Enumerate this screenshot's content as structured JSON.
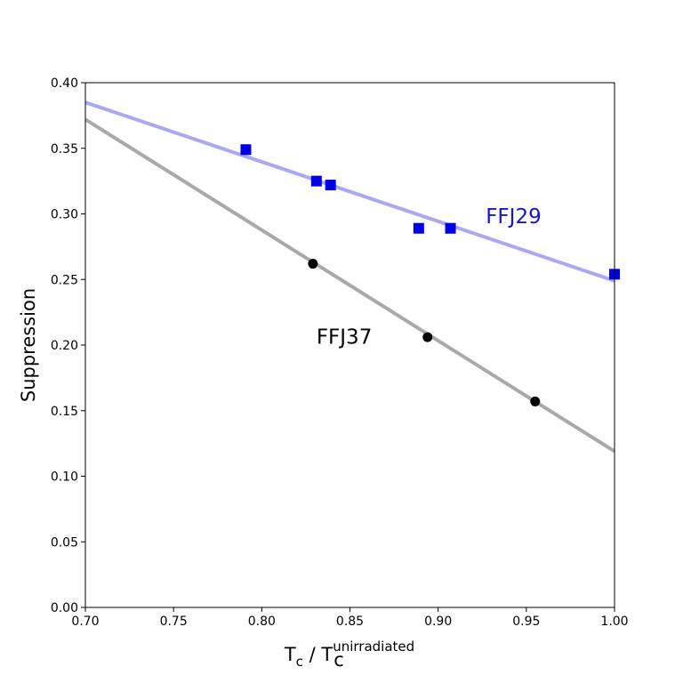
{
  "chart_data": {
    "type": "scatter",
    "xlabel": {
      "base": "T",
      "sub": "c",
      "separator": " / ",
      "base2": "T",
      "sub2": "c",
      "sup2": "unirradiated"
    },
    "ylabel": "Suppression",
    "xlim": [
      0.7,
      1.0
    ],
    "ylim": [
      0.0,
      0.4
    ],
    "x_ticks": [
      {
        "value": 0.7,
        "label": "0.70"
      },
      {
        "value": 0.75,
        "label": "0.75"
      },
      {
        "value": 0.8,
        "label": "0.80"
      },
      {
        "value": 0.85,
        "label": "0.85"
      },
      {
        "value": 0.9,
        "label": "0.90"
      },
      {
        "value": 0.95,
        "label": "0.95"
      },
      {
        "value": 1.0,
        "label": "1.00"
      }
    ],
    "y_ticks": [
      {
        "value": 0.0,
        "label": "0.00"
      },
      {
        "value": 0.05,
        "label": "0.05"
      },
      {
        "value": 0.1,
        "label": "0.10"
      },
      {
        "value": 0.15,
        "label": "0.15"
      },
      {
        "value": 0.2,
        "label": "0.20"
      },
      {
        "value": 0.25,
        "label": "0.25"
      },
      {
        "value": 0.3,
        "label": "0.30"
      },
      {
        "value": 0.35,
        "label": "0.35"
      },
      {
        "value": 0.4,
        "label": "0.40"
      }
    ],
    "grid": false,
    "legend": "none",
    "series": [
      {
        "name": "FFJ29",
        "marker": "square",
        "marker_color": "#0000e6",
        "fit_color": "#a8a8f5",
        "label_color": "#1414d2",
        "label_pos": {
          "x": 0.927,
          "y": 0.293
        },
        "points": [
          {
            "x": 0.791,
            "y": 0.349
          },
          {
            "x": 0.831,
            "y": 0.325
          },
          {
            "x": 0.839,
            "y": 0.322
          },
          {
            "x": 0.889,
            "y": 0.289
          },
          {
            "x": 0.907,
            "y": 0.289
          },
          {
            "x": 1.0,
            "y": 0.254
          }
        ],
        "fit": [
          {
            "x": 0.7,
            "y": 0.385
          },
          {
            "x": 1.0,
            "y": 0.249
          }
        ]
      },
      {
        "name": "FFJ37",
        "marker": "circle",
        "marker_color": "#000000",
        "fit_color": "#a9a9a9",
        "label_color": "#000000",
        "label_pos": {
          "x": 0.831,
          "y": 0.201
        },
        "points": [
          {
            "x": 0.829,
            "y": 0.262
          },
          {
            "x": 0.894,
            "y": 0.206
          },
          {
            "x": 0.955,
            "y": 0.157
          }
        ],
        "fit": [
          {
            "x": 0.7,
            "y": 0.372
          },
          {
            "x": 1.0,
            "y": 0.119
          }
        ]
      }
    ]
  }
}
